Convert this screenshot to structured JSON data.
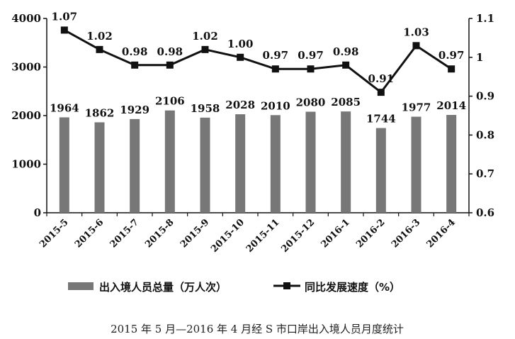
{
  "chart_data": {
    "type": "bar+line",
    "categories": [
      "2015-5",
      "2015-6",
      "2015-7",
      "2015-8",
      "2015-9",
      "2015-10",
      "2015-11",
      "2015-12",
      "2016-1",
      "2016-2",
      "2016-3",
      "2016-4"
    ],
    "series": [
      {
        "name": "出入境人员总量（万人次）",
        "type": "bar",
        "axis": "left",
        "color": "#777777",
        "values": [
          1964,
          1862,
          1929,
          2106,
          1958,
          2028,
          2010,
          2080,
          2085,
          1744,
          1977,
          2014
        ]
      },
      {
        "name": "同比发展速度（%）",
        "type": "line",
        "axis": "right",
        "color": "#111111",
        "values": [
          1.07,
          1.02,
          0.98,
          0.98,
          1.02,
          1.0,
          0.97,
          0.97,
          0.98,
          0.91,
          1.03,
          0.97
        ],
        "labels": [
          "1.07",
          "1.02",
          "0.98",
          "0.98",
          "1.02",
          "1.00",
          "0.97",
          "0.97",
          "0.98",
          "0.91",
          "1.03",
          "0.97"
        ]
      }
    ],
    "y_left": {
      "min": 0,
      "max": 4000,
      "ticks": [
        "0",
        "1000",
        "2000",
        "3000",
        "4000"
      ]
    },
    "y_right": {
      "min": 0.6,
      "max": 1.1,
      "ticks": [
        "0.6",
        "0.7",
        "0.8",
        "0.9",
        "1",
        "1.1"
      ]
    },
    "legend_position": "bottom",
    "caption": "2015 年 5 月—2016 年 4 月经 S 市口岸出入境人员月度统计"
  }
}
